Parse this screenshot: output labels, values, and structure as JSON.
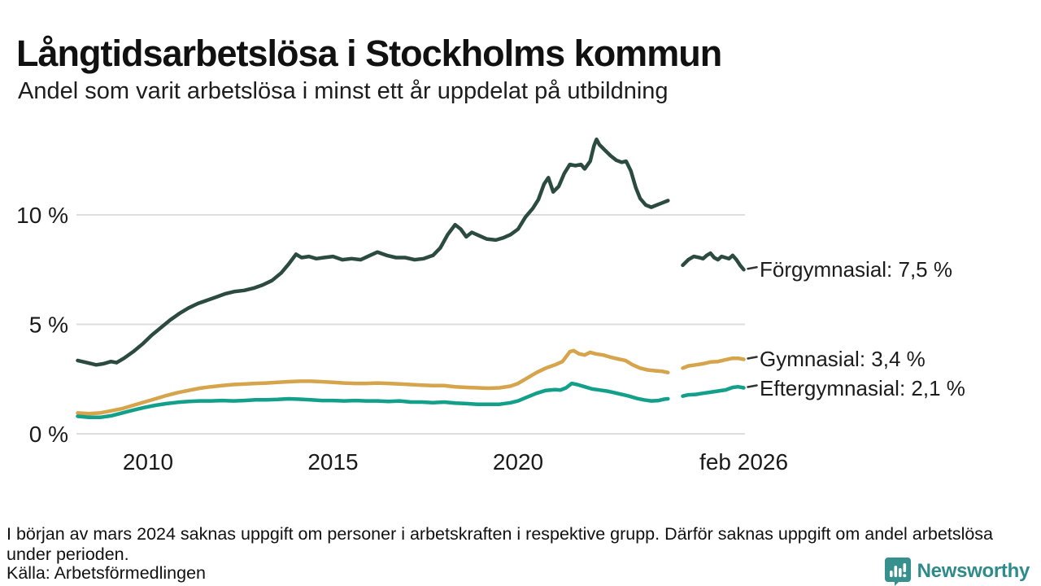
{
  "header": {
    "title": "Långtidsarbetslösa i Stockholms kommun",
    "subtitle": "Andel som varit arbetslösa i minst ett år uppdelat på utbildning"
  },
  "chart_data": {
    "type": "line",
    "title": "Långtidsarbetslösa i Stockholms kommun",
    "subtitle": "Andel som varit arbetslösa i minst ett år uppdelat på utbildning",
    "unit": "%",
    "grid": "horizontal-only",
    "legend_position": "right-edge-labels",
    "x_axis": {
      "range": [
        2008.05,
        2026.15
      ],
      "ticks": [
        {
          "label": "2010",
          "year": 2010
        },
        {
          "label": "2015",
          "year": 2015
        },
        {
          "label": "2020",
          "year": 2020
        },
        {
          "label": "feb 2026",
          "year": 2026.1
        }
      ]
    },
    "y_axis": {
      "range": [
        0,
        13.9
      ],
      "ticks": [
        {
          "label": "0 %",
          "value": 0
        },
        {
          "label": "5 %",
          "value": 5
        },
        {
          "label": "10 %",
          "value": 10
        }
      ]
    },
    "data_gap": {
      "from": 2024.1,
      "to": 2024.4,
      "reason": "saknas uppgift mars 2024"
    },
    "series": [
      {
        "name": "Förgymnasial",
        "label": "Förgymnasial: 7,5 %",
        "current_value": "7,5 %",
        "color": "#2C4B40",
        "segments": [
          [
            [
              2008.1,
              3.35
            ],
            [
              2008.35,
              3.25
            ],
            [
              2008.6,
              3.15
            ],
            [
              2008.8,
              3.2
            ],
            [
              2009.0,
              3.3
            ],
            [
              2009.15,
              3.25
            ],
            [
              2009.35,
              3.45
            ],
            [
              2009.6,
              3.75
            ],
            [
              2009.85,
              4.1
            ],
            [
              2010.1,
              4.5
            ],
            [
              2010.35,
              4.85
            ],
            [
              2010.6,
              5.2
            ],
            [
              2010.85,
              5.5
            ],
            [
              2011.1,
              5.75
            ],
            [
              2011.35,
              5.95
            ],
            [
              2011.6,
              6.1
            ],
            [
              2011.85,
              6.25
            ],
            [
              2012.1,
              6.4
            ],
            [
              2012.35,
              6.5
            ],
            [
              2012.6,
              6.55
            ],
            [
              2012.85,
              6.65
            ],
            [
              2013.1,
              6.8
            ],
            [
              2013.35,
              7.0
            ],
            [
              2013.6,
              7.35
            ],
            [
              2013.8,
              7.75
            ],
            [
              2014.0,
              8.2
            ],
            [
              2014.15,
              8.05
            ],
            [
              2014.35,
              8.1
            ],
            [
              2014.55,
              8.0
            ],
            [
              2014.75,
              8.05
            ],
            [
              2015.0,
              8.1
            ],
            [
              2015.25,
              7.95
            ],
            [
              2015.5,
              8.0
            ],
            [
              2015.75,
              7.95
            ],
            [
              2016.0,
              8.15
            ],
            [
              2016.2,
              8.3
            ],
            [
              2016.45,
              8.15
            ],
            [
              2016.7,
              8.05
            ],
            [
              2016.95,
              8.05
            ],
            [
              2017.2,
              7.95
            ],
            [
              2017.45,
              8.0
            ],
            [
              2017.7,
              8.15
            ],
            [
              2017.9,
              8.5
            ],
            [
              2018.1,
              9.1
            ],
            [
              2018.3,
              9.55
            ],
            [
              2018.45,
              9.35
            ],
            [
              2018.6,
              9.0
            ],
            [
              2018.75,
              9.2
            ],
            [
              2018.95,
              9.05
            ],
            [
              2019.15,
              8.9
            ],
            [
              2019.4,
              8.85
            ],
            [
              2019.6,
              8.95
            ],
            [
              2019.8,
              9.1
            ],
            [
              2020.0,
              9.35
            ],
            [
              2020.2,
              9.9
            ],
            [
              2020.4,
              10.3
            ],
            [
              2020.55,
              10.7
            ],
            [
              2020.7,
              11.4
            ],
            [
              2020.82,
              11.7
            ],
            [
              2020.95,
              11.05
            ],
            [
              2021.1,
              11.3
            ],
            [
              2021.25,
              11.9
            ],
            [
              2021.4,
              12.3
            ],
            [
              2021.55,
              12.25
            ],
            [
              2021.7,
              12.3
            ],
            [
              2021.8,
              12.1
            ],
            [
              2021.95,
              12.45
            ],
            [
              2022.05,
              13.15
            ],
            [
              2022.12,
              13.45
            ],
            [
              2022.2,
              13.2
            ],
            [
              2022.35,
              12.95
            ],
            [
              2022.5,
              12.7
            ],
            [
              2022.65,
              12.5
            ],
            [
              2022.8,
              12.4
            ],
            [
              2022.92,
              12.45
            ],
            [
              2023.05,
              12.0
            ],
            [
              2023.18,
              11.25
            ],
            [
              2023.3,
              10.75
            ],
            [
              2023.45,
              10.45
            ],
            [
              2023.6,
              10.35
            ],
            [
              2023.75,
              10.45
            ],
            [
              2023.9,
              10.55
            ],
            [
              2024.05,
              10.65
            ]
          ],
          [
            [
              2024.45,
              7.7
            ],
            [
              2024.6,
              7.95
            ],
            [
              2024.75,
              8.1
            ],
            [
              2024.9,
              8.05
            ],
            [
              2025.0,
              8.0
            ],
            [
              2025.1,
              8.15
            ],
            [
              2025.2,
              8.25
            ],
            [
              2025.3,
              8.05
            ],
            [
              2025.4,
              7.95
            ],
            [
              2025.5,
              8.1
            ],
            [
              2025.6,
              8.05
            ],
            [
              2025.7,
              8.0
            ],
            [
              2025.8,
              8.15
            ],
            [
              2025.9,
              7.95
            ],
            [
              2026.0,
              7.7
            ],
            [
              2026.1,
              7.5
            ]
          ]
        ]
      },
      {
        "name": "Gymnasial",
        "label": "Gymnasial: 3,4 %",
        "current_value": "3,4 %",
        "color": "#D5A44B",
        "segments": [
          [
            [
              2008.1,
              0.95
            ],
            [
              2008.4,
              0.92
            ],
            [
              2008.7,
              0.95
            ],
            [
              2009.0,
              1.05
            ],
            [
              2009.3,
              1.15
            ],
            [
              2009.6,
              1.3
            ],
            [
              2009.9,
              1.45
            ],
            [
              2010.2,
              1.6
            ],
            [
              2010.5,
              1.75
            ],
            [
              2010.8,
              1.88
            ],
            [
              2011.1,
              1.98
            ],
            [
              2011.4,
              2.08
            ],
            [
              2011.7,
              2.15
            ],
            [
              2012.0,
              2.2
            ],
            [
              2012.3,
              2.25
            ],
            [
              2012.6,
              2.27
            ],
            [
              2012.9,
              2.3
            ],
            [
              2013.2,
              2.32
            ],
            [
              2013.5,
              2.35
            ],
            [
              2013.8,
              2.38
            ],
            [
              2014.1,
              2.4
            ],
            [
              2014.4,
              2.4
            ],
            [
              2014.7,
              2.38
            ],
            [
              2015.0,
              2.35
            ],
            [
              2015.3,
              2.32
            ],
            [
              2015.6,
              2.3
            ],
            [
              2015.9,
              2.3
            ],
            [
              2016.2,
              2.32
            ],
            [
              2016.5,
              2.3
            ],
            [
              2016.8,
              2.28
            ],
            [
              2017.1,
              2.25
            ],
            [
              2017.4,
              2.22
            ],
            [
              2017.7,
              2.2
            ],
            [
              2018.0,
              2.2
            ],
            [
              2018.3,
              2.15
            ],
            [
              2018.6,
              2.12
            ],
            [
              2018.9,
              2.1
            ],
            [
              2019.2,
              2.08
            ],
            [
              2019.5,
              2.1
            ],
            [
              2019.8,
              2.18
            ],
            [
              2020.0,
              2.3
            ],
            [
              2020.25,
              2.55
            ],
            [
              2020.5,
              2.8
            ],
            [
              2020.75,
              3.0
            ],
            [
              2021.0,
              3.15
            ],
            [
              2021.2,
              3.3
            ],
            [
              2021.4,
              3.75
            ],
            [
              2021.5,
              3.8
            ],
            [
              2021.65,
              3.65
            ],
            [
              2021.8,
              3.6
            ],
            [
              2021.95,
              3.72
            ],
            [
              2022.1,
              3.65
            ],
            [
              2022.3,
              3.6
            ],
            [
              2022.5,
              3.5
            ],
            [
              2022.7,
              3.42
            ],
            [
              2022.9,
              3.35
            ],
            [
              2023.1,
              3.15
            ],
            [
              2023.3,
              3.0
            ],
            [
              2023.5,
              2.92
            ],
            [
              2023.7,
              2.88
            ],
            [
              2023.9,
              2.85
            ],
            [
              2024.05,
              2.8
            ]
          ],
          [
            [
              2024.45,
              3.0
            ],
            [
              2024.6,
              3.1
            ],
            [
              2024.8,
              3.15
            ],
            [
              2025.0,
              3.2
            ],
            [
              2025.2,
              3.28
            ],
            [
              2025.4,
              3.3
            ],
            [
              2025.6,
              3.38
            ],
            [
              2025.8,
              3.45
            ],
            [
              2025.95,
              3.45
            ],
            [
              2026.1,
              3.4
            ]
          ]
        ]
      },
      {
        "name": "Eftergymnasial",
        "label": "Eftergymnasial: 2,1 %",
        "current_value": "2,1 %",
        "color": "#12A08A",
        "segments": [
          [
            [
              2008.1,
              0.8
            ],
            [
              2008.4,
              0.75
            ],
            [
              2008.7,
              0.75
            ],
            [
              2009.0,
              0.82
            ],
            [
              2009.3,
              0.95
            ],
            [
              2009.6,
              1.08
            ],
            [
              2009.9,
              1.2
            ],
            [
              2010.2,
              1.3
            ],
            [
              2010.5,
              1.38
            ],
            [
              2010.8,
              1.44
            ],
            [
              2011.1,
              1.48
            ],
            [
              2011.4,
              1.5
            ],
            [
              2011.7,
              1.5
            ],
            [
              2012.0,
              1.52
            ],
            [
              2012.3,
              1.5
            ],
            [
              2012.6,
              1.52
            ],
            [
              2012.9,
              1.55
            ],
            [
              2013.2,
              1.55
            ],
            [
              2013.5,
              1.57
            ],
            [
              2013.8,
              1.6
            ],
            [
              2014.1,
              1.58
            ],
            [
              2014.4,
              1.55
            ],
            [
              2014.7,
              1.52
            ],
            [
              2015.0,
              1.52
            ],
            [
              2015.3,
              1.5
            ],
            [
              2015.6,
              1.52
            ],
            [
              2015.9,
              1.5
            ],
            [
              2016.2,
              1.5
            ],
            [
              2016.5,
              1.48
            ],
            [
              2016.8,
              1.5
            ],
            [
              2017.1,
              1.45
            ],
            [
              2017.4,
              1.45
            ],
            [
              2017.7,
              1.42
            ],
            [
              2018.0,
              1.45
            ],
            [
              2018.3,
              1.4
            ],
            [
              2018.6,
              1.38
            ],
            [
              2018.9,
              1.35
            ],
            [
              2019.2,
              1.35
            ],
            [
              2019.5,
              1.35
            ],
            [
              2019.8,
              1.42
            ],
            [
              2020.0,
              1.5
            ],
            [
              2020.25,
              1.68
            ],
            [
              2020.5,
              1.85
            ],
            [
              2020.75,
              1.98
            ],
            [
              2021.0,
              2.02
            ],
            [
              2021.15,
              2.0
            ],
            [
              2021.3,
              2.1
            ],
            [
              2021.45,
              2.3
            ],
            [
              2021.6,
              2.25
            ],
            [
              2021.8,
              2.15
            ],
            [
              2022.0,
              2.05
            ],
            [
              2022.2,
              2.0
            ],
            [
              2022.4,
              1.95
            ],
            [
              2022.6,
              1.88
            ],
            [
              2022.8,
              1.8
            ],
            [
              2023.0,
              1.72
            ],
            [
              2023.2,
              1.62
            ],
            [
              2023.4,
              1.55
            ],
            [
              2023.6,
              1.5
            ],
            [
              2023.8,
              1.52
            ],
            [
              2023.95,
              1.58
            ],
            [
              2024.05,
              1.6
            ]
          ],
          [
            [
              2024.45,
              1.72
            ],
            [
              2024.6,
              1.78
            ],
            [
              2024.8,
              1.8
            ],
            [
              2025.0,
              1.85
            ],
            [
              2025.2,
              1.9
            ],
            [
              2025.4,
              1.95
            ],
            [
              2025.6,
              2.0
            ],
            [
              2025.8,
              2.12
            ],
            [
              2025.95,
              2.15
            ],
            [
              2026.1,
              2.1
            ]
          ]
        ]
      }
    ]
  },
  "footer": {
    "note": "I början av mars 2024 saknas uppgift om personer i arbetskraften i respektive grupp. Därför saknas uppgift om andel arbetslösa under perioden.",
    "source": "Källa: Arbetsförmedlingen",
    "brand": "Newsworthy"
  },
  "colors": {
    "forgymnasial": "#2C4B40",
    "gymnasial": "#D5A44B",
    "eftergymnasial": "#12A08A",
    "gridline": "#DEDEDE",
    "text": "#111111",
    "brand_teal": "#2E8B89",
    "logo_teal": "#35908E"
  }
}
